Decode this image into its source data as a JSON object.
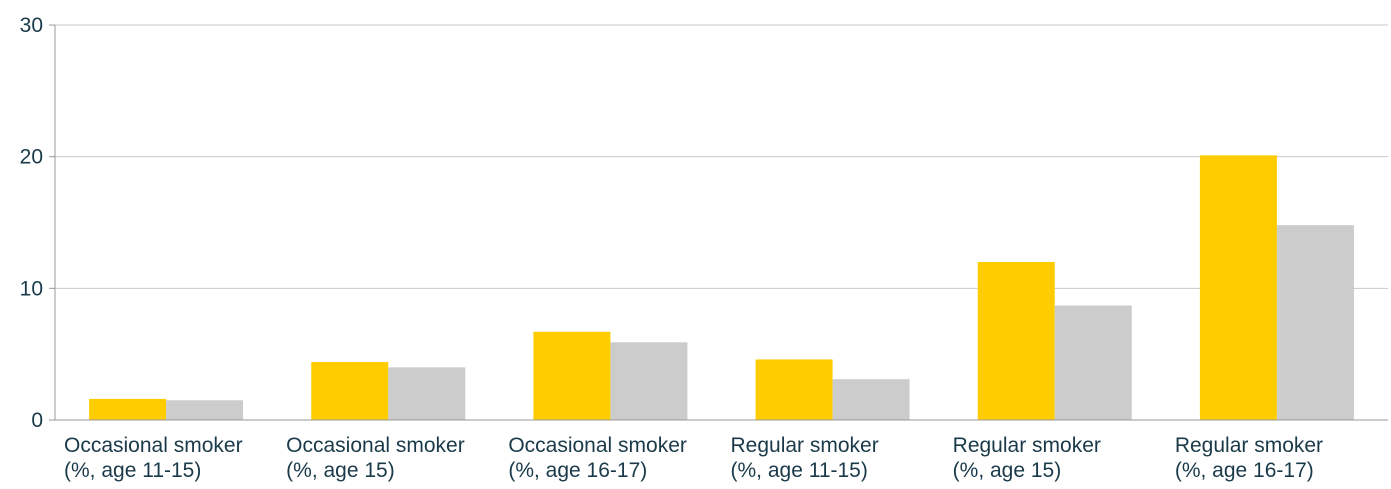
{
  "chart_data": {
    "type": "bar",
    "title": "",
    "xlabel": "",
    "ylabel": "",
    "ylim": [
      0,
      30
    ],
    "yticks": [
      0,
      10,
      20,
      30
    ],
    "grid": true,
    "categories": [
      [
        "Occasional smoker",
        "(%, age 11-15)"
      ],
      [
        "Occasional smoker",
        "(%, age 15)"
      ],
      [
        "Occasional smoker",
        "(%, age 16-17)"
      ],
      [
        "Regular smoker",
        "(%, age 11-15)"
      ],
      [
        "Regular smoker",
        "(%, age 15)"
      ],
      [
        "Regular smoker",
        "(%, age 16-17)"
      ]
    ],
    "series": [
      {
        "color": "#FFCC00",
        "values": [
          1.6,
          4.4,
          6.7,
          4.6,
          12.0,
          20.1
        ]
      },
      {
        "color": "#CCCCCC",
        "values": [
          1.5,
          4.0,
          5.9,
          3.1,
          8.7,
          14.8
        ]
      }
    ]
  },
  "colors": {
    "axis": "#999999",
    "grid": "#c8c8c8",
    "text": "#1a3a4a"
  }
}
